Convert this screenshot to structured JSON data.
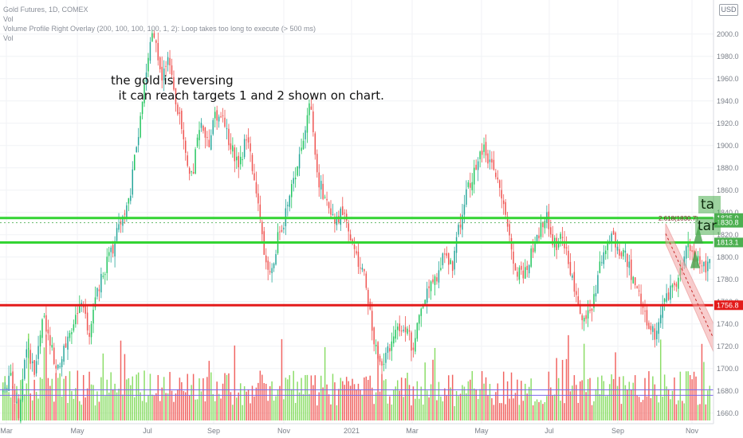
{
  "header": {
    "symbol_line": "Gold Futures, 1D, COMEX",
    "indicator_1": "Vol",
    "indicator_2": "Volume Profile Right Overlay (200, 100, 100, 100, 1, 2): Loop takes too long to execute (> 500 ms)",
    "indicator_3": "Vol",
    "currency": "USD"
  },
  "annotation": {
    "line1": "the gold is reversing",
    "line2": "  it can reach targets 1 and 2 shown on chart."
  },
  "targets": {
    "t1": "ta",
    "t2": "tar"
  },
  "colors": {
    "up": "#26a69a",
    "up_bright": "#22c55e",
    "down": "#ef5350",
    "green_line": "#33d433",
    "red_line": "#e31b1b",
    "vol_up": "#7ed957",
    "vol_down": "#ef5350",
    "channel": "#f4a6a6"
  },
  "chart_data": {
    "type": "candlestick",
    "title": "Gold Futures, 1D, COMEX",
    "x_tick_labels": [
      "Mar",
      "May",
      "Jul",
      "Sep",
      "Nov",
      "2021",
      "Mar",
      "May",
      "Jul",
      "Sep",
      "Nov"
    ],
    "y_tick_labels": [
      "1660.0",
      "1680.0",
      "1700.0",
      "1720.0",
      "1740.0",
      "1760.0",
      "1780.0",
      "1800.0",
      "1820.0",
      "1840.0",
      "1860.0",
      "1880.0",
      "1900.0",
      "1920.0",
      "1940.0",
      "1960.0",
      "1980.0",
      "2000.0"
    ],
    "ylim": [
      1652,
      2022
    ],
    "close_path": [
      [
        0,
        1680
      ],
      [
        4,
        1690
      ],
      [
        8,
        1660
      ],
      [
        12,
        1720
      ],
      [
        16,
        1700
      ],
      [
        20,
        1750
      ],
      [
        24,
        1720
      ],
      [
        28,
        1700
      ],
      [
        32,
        1725
      ],
      [
        36,
        1740
      ],
      [
        40,
        1760
      ],
      [
        44,
        1725
      ],
      [
        48,
        1770
      ],
      [
        52,
        1790
      ],
      [
        56,
        1810
      ],
      [
        60,
        1830
      ],
      [
        64,
        1850
      ],
      [
        68,
        1900
      ],
      [
        72,
        1960
      ],
      [
        76,
        2010
      ],
      [
        80,
        1960
      ],
      [
        84,
        1980
      ],
      [
        88,
        1940
      ],
      [
        92,
        1900
      ],
      [
        96,
        1870
      ],
      [
        100,
        1920
      ],
      [
        104,
        1900
      ],
      [
        108,
        1930
      ],
      [
        112,
        1920
      ],
      [
        116,
        1900
      ],
      [
        120,
        1880
      ],
      [
        124,
        1910
      ],
      [
        128,
        1870
      ],
      [
        132,
        1810
      ],
      [
        136,
        1780
      ],
      [
        140,
        1820
      ],
      [
        144,
        1840
      ],
      [
        148,
        1870
      ],
      [
        152,
        1900
      ],
      [
        156,
        1940
      ],
      [
        160,
        1870
      ],
      [
        164,
        1850
      ],
      [
        168,
        1830
      ],
      [
        172,
        1840
      ],
      [
        176,
        1820
      ],
      [
        180,
        1800
      ],
      [
        184,
        1780
      ],
      [
        188,
        1730
      ],
      [
        192,
        1700
      ],
      [
        196,
        1720
      ],
      [
        200,
        1730
      ],
      [
        204,
        1740
      ],
      [
        208,
        1720
      ],
      [
        212,
        1750
      ],
      [
        216,
        1770
      ],
      [
        220,
        1780
      ],
      [
        224,
        1800
      ],
      [
        228,
        1790
      ],
      [
        232,
        1830
      ],
      [
        236,
        1860
      ],
      [
        240,
        1880
      ],
      [
        244,
        1900
      ],
      [
        248,
        1880
      ],
      [
        252,
        1860
      ],
      [
        256,
        1830
      ],
      [
        260,
        1790
      ],
      [
        264,
        1780
      ],
      [
        268,
        1800
      ],
      [
        272,
        1820
      ],
      [
        276,
        1840
      ],
      [
        280,
        1810
      ],
      [
        284,
        1820
      ],
      [
        288,
        1790
      ],
      [
        292,
        1760
      ],
      [
        296,
        1740
      ],
      [
        300,
        1760
      ],
      [
        304,
        1800
      ],
      [
        308,
        1820
      ],
      [
        312,
        1810
      ],
      [
        316,
        1800
      ],
      [
        320,
        1780
      ],
      [
        324,
        1760
      ],
      [
        328,
        1740
      ],
      [
        332,
        1730
      ],
      [
        336,
        1760
      ],
      [
        340,
        1770
      ],
      [
        344,
        1790
      ],
      [
        348,
        1810
      ],
      [
        352,
        1800
      ],
      [
        356,
        1790
      ],
      [
        360,
        1800
      ]
    ],
    "n_bars": 361,
    "x_month_index": [
      0,
      42,
      84,
      126,
      168,
      205,
      244,
      282,
      322,
      362,
      402
    ],
    "horizontal_levels": [
      {
        "price": 1835.0,
        "color": "green",
        "label": "1835.0"
      },
      {
        "price": 1813.1,
        "color": "green",
        "label": "1813.1"
      },
      {
        "price": 1756.8,
        "color": "red",
        "label": "1756.8"
      }
    ],
    "extra_price_labels": [
      {
        "price": 1830.8,
        "label": "1830.8"
      }
    ],
    "fib_label": "2.618(1830.7)",
    "volume_profile_levels": [
      1681,
      1676
    ]
  }
}
